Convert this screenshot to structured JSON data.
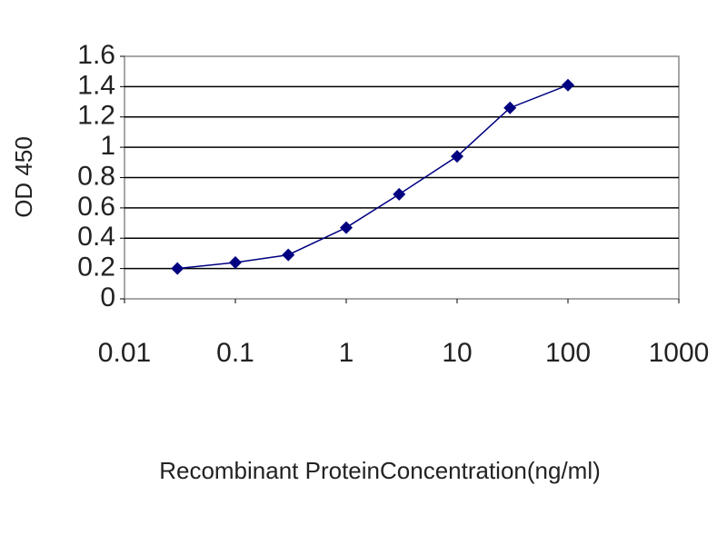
{
  "chart_data": {
    "type": "line",
    "x": [
      0.03,
      0.1,
      0.3,
      1,
      3,
      10,
      30,
      100
    ],
    "values": [
      0.2,
      0.24,
      0.29,
      0.47,
      0.69,
      0.94,
      1.26,
      1.41
    ],
    "color": "#000080",
    "xlabel": "Recombinant ProteinConcentration(ng/ml)",
    "ylabel": "OD 450",
    "xscale": "log",
    "xlim": [
      0.01,
      1000
    ],
    "xticks": [
      0.01,
      0.1,
      1,
      10,
      100,
      1000
    ],
    "ylim": [
      0,
      1.6
    ],
    "yticks": [
      0,
      0.2,
      0.4,
      0.6,
      0.8,
      1,
      1.2,
      1.4,
      1.6
    ],
    "grid": true
  }
}
